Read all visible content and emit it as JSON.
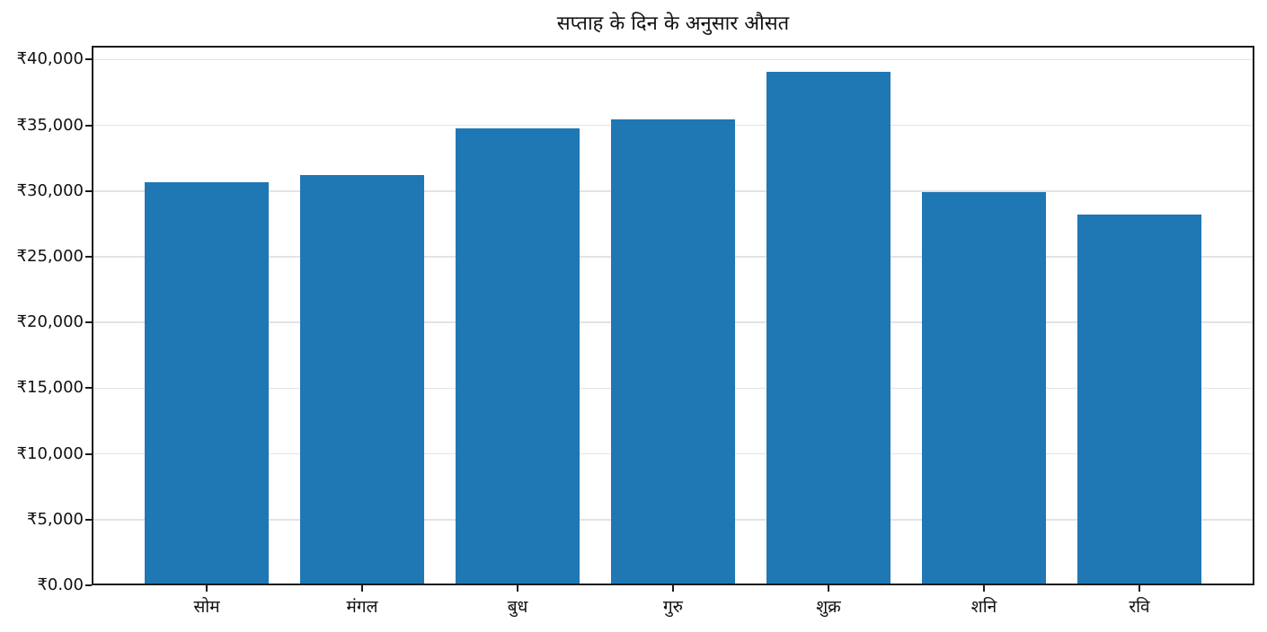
{
  "chart_data": {
    "type": "bar",
    "title": "सप्ताह के दिन के अनुसार औसत",
    "categories": [
      "सोम",
      "मंगल",
      "बुध",
      "गुरु",
      "शुक्र",
      "शनि",
      "रवि"
    ],
    "category_names": [
      "monday",
      "tuesday",
      "wednesday",
      "thursday",
      "friday",
      "saturday",
      "sunday"
    ],
    "values": [
      30500,
      31100,
      34600,
      35300,
      38900,
      29800,
      28100
    ],
    "xlabel": "",
    "ylabel": "",
    "ylim": [
      0,
      41050
    ],
    "ytick_values": [
      0,
      5000,
      10000,
      15000,
      20000,
      25000,
      30000,
      35000,
      40000
    ],
    "ytick_labels": [
      "₹0.00",
      "₹5,000",
      "₹10,000",
      "₹15,000",
      "₹20,000",
      "₹25,000",
      "₹30,000",
      "₹35,000",
      "₹40,000"
    ],
    "currency": "INR",
    "bar_color": "#1f77b4",
    "grid": "horizontal",
    "gridline_color": "#e3e3e3",
    "frame_color": "#1b1b1b",
    "legend": "none"
  }
}
